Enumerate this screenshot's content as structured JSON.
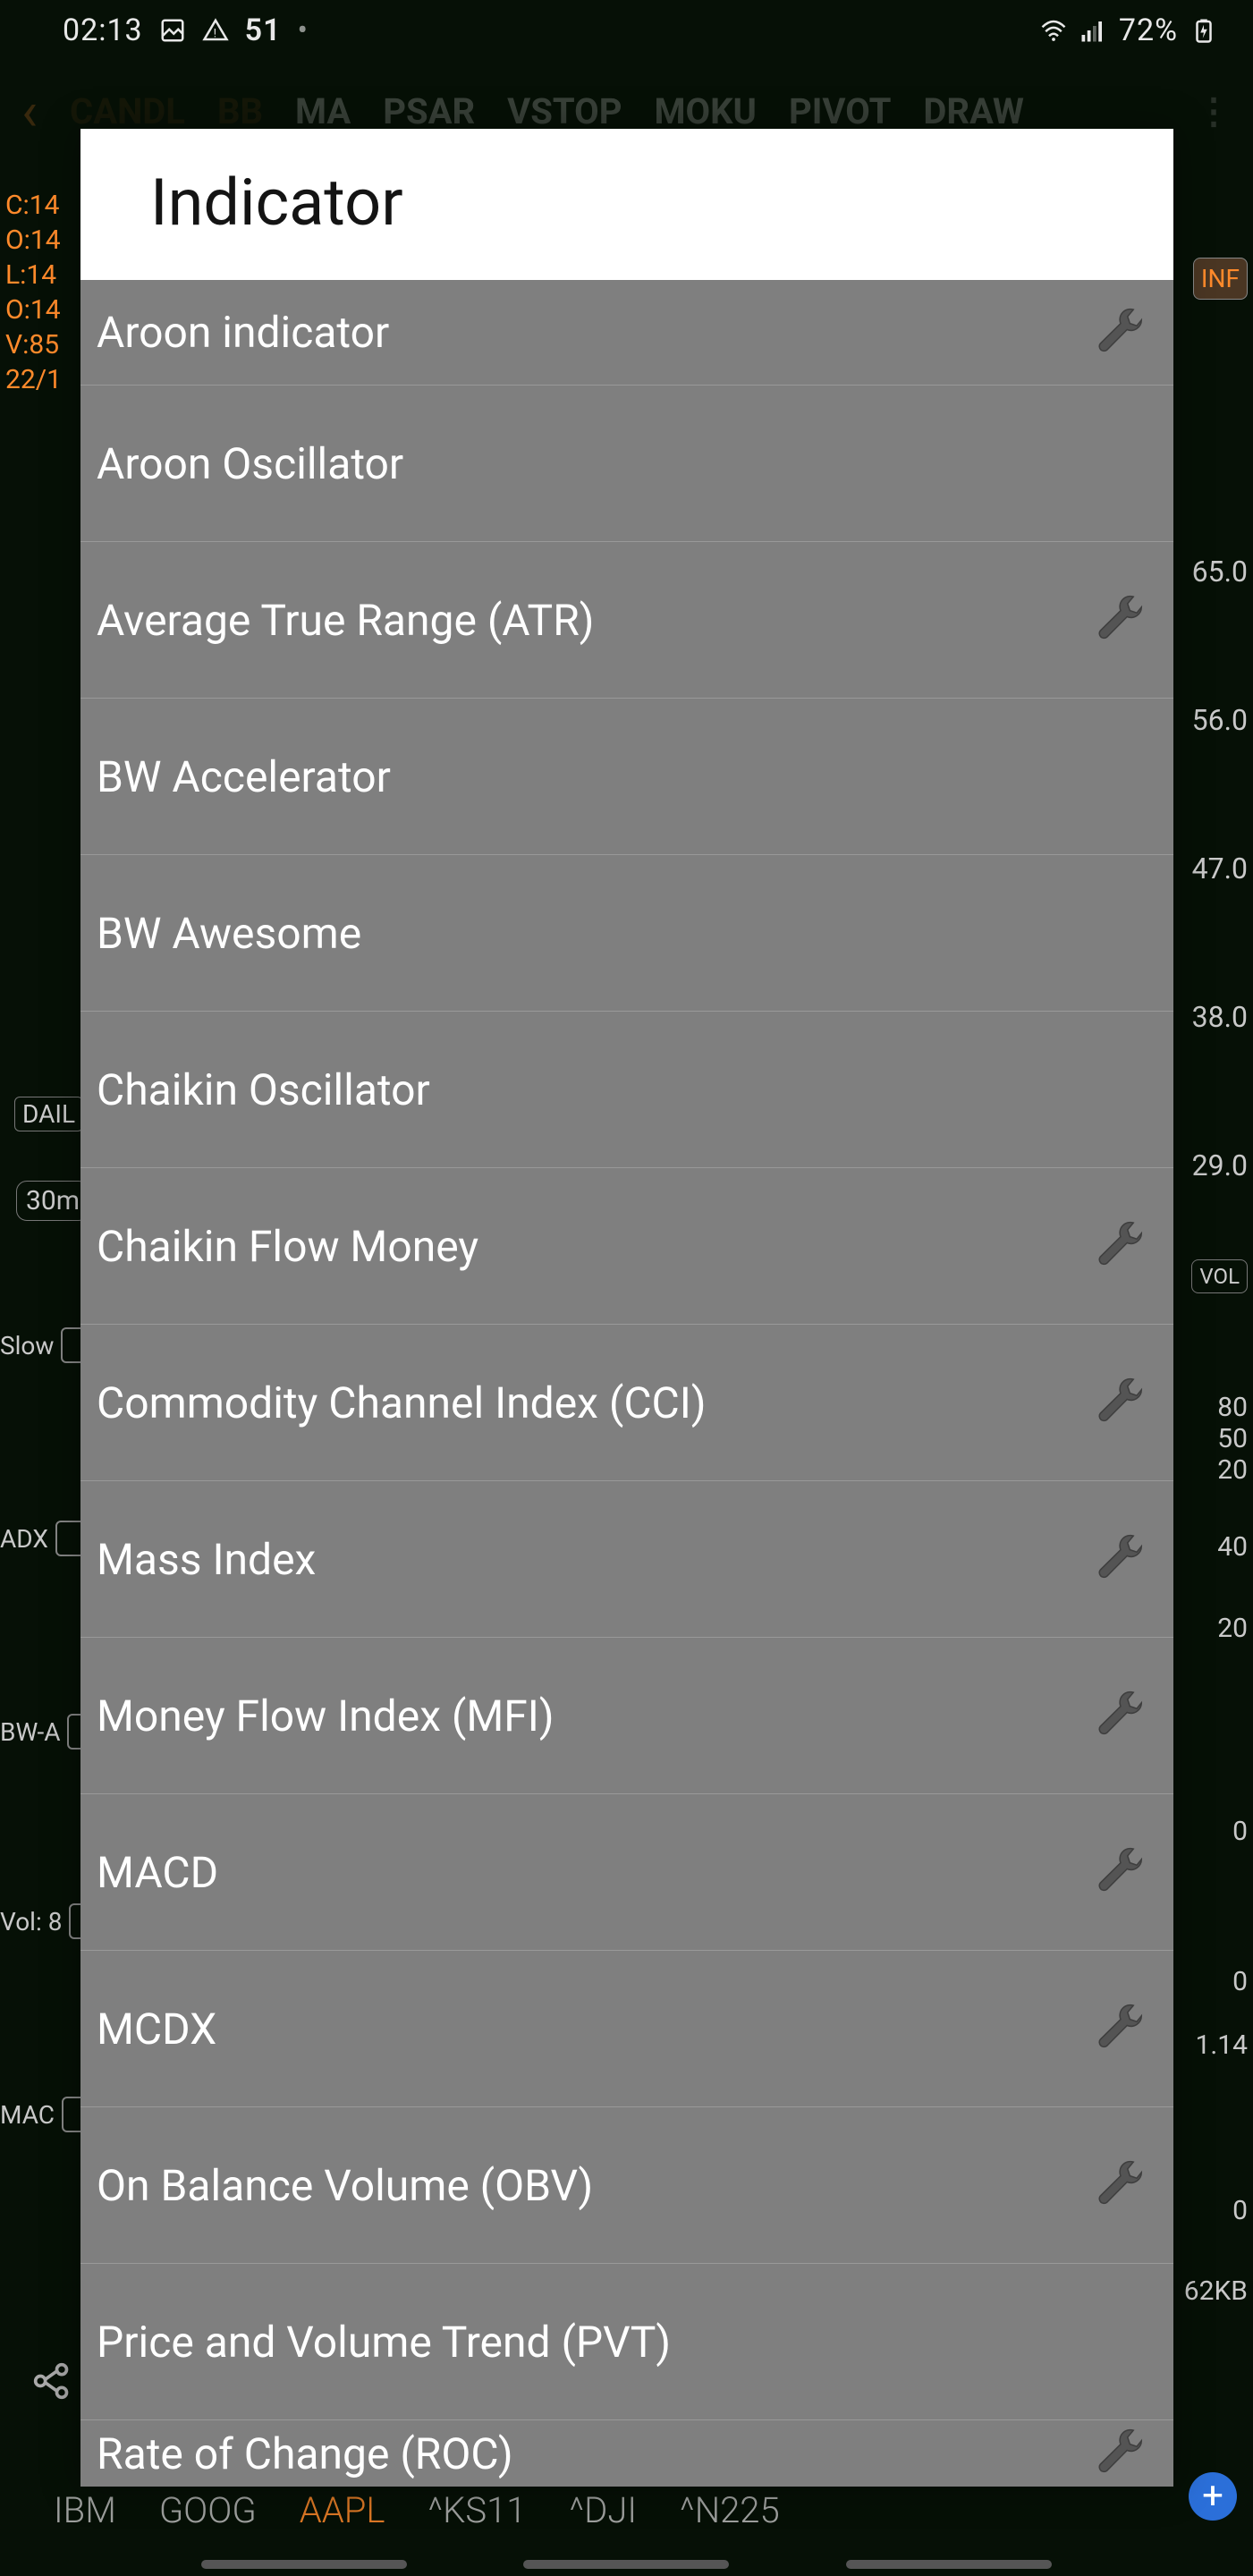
{
  "status_bar": {
    "time": "02:13",
    "notif_count": "51",
    "battery_pct": "72%"
  },
  "background": {
    "toolbar": [
      "MA",
      "PSAR",
      "VSTOP",
      "MOKU",
      "PIVOT",
      "DRAW"
    ],
    "ohlc": {
      "c": "C:14",
      "o": "O:14",
      "l": "L:14",
      "o2": "O:14",
      "v": "V:85",
      "date": "22/1"
    },
    "inf_badge": "INF",
    "price_axis": [
      "65.0",
      "56.0",
      "47.0",
      "38.0",
      "29.0"
    ],
    "daily_badge": "DAIL",
    "thirtym_badge": "30m",
    "vol_badge": "VOL",
    "slow_label": "Slow",
    "slow_axis": [
      "80",
      "50",
      "20"
    ],
    "adx_label": "ADX",
    "adx_axis": [
      "40",
      "20"
    ],
    "bwa_label": "BW-A",
    "bwa_axis": [
      "0"
    ],
    "vol8_label": "Vol: 8",
    "vol8_axis": [
      "0",
      "1.14"
    ],
    "mac_label": "MAC",
    "mac_axis": [
      "0"
    ],
    "kb_label": "62KB",
    "tickers": [
      "IBM",
      "GOOG",
      "AAPL",
      "^KS11",
      "^DJI",
      "^N225"
    ],
    "active_ticker": "AAPL"
  },
  "modal": {
    "title": "Indicator",
    "items": [
      {
        "label": "Aroon indicator",
        "wrench": true
      },
      {
        "label": "Aroon Oscillator",
        "wrench": false
      },
      {
        "label": "Average True Range (ATR)",
        "wrench": true
      },
      {
        "label": "BW Accelerator",
        "wrench": false
      },
      {
        "label": "BW Awesome",
        "wrench": false
      },
      {
        "label": "Chaikin Oscillator",
        "wrench": false
      },
      {
        "label": "Chaikin Flow Money",
        "wrench": true
      },
      {
        "label": "Commodity Channel Index (CCI)",
        "wrench": true
      },
      {
        "label": "Mass Index",
        "wrench": true
      },
      {
        "label": "Money Flow Index (MFI)",
        "wrench": true
      },
      {
        "label": "MACD",
        "wrench": true
      },
      {
        "label": "MCDX",
        "wrench": true
      },
      {
        "label": "On Balance Volume (OBV)",
        "wrench": true
      },
      {
        "label": "Price and Volume Trend (PVT)",
        "wrench": false
      },
      {
        "label": "Rate of Change (ROC)",
        "wrench": true
      }
    ]
  },
  "colors": {
    "modal_bg": "#7f7f7f",
    "header_bg": "#ffffff",
    "item_text": "#ffffff",
    "divider": "#999999",
    "accent_orange": "#ff8a2b"
  }
}
